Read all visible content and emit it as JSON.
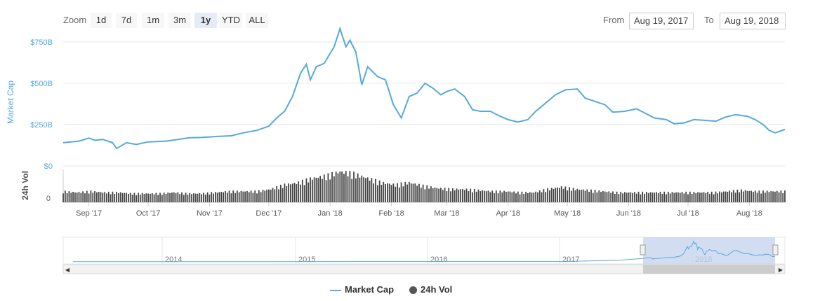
{
  "toolbar": {
    "zoom_label": "Zoom",
    "buttons": [
      "1d",
      "7d",
      "1m",
      "3m",
      "1y",
      "YTD",
      "ALL"
    ],
    "active_button": "1y",
    "from_label": "From",
    "from_value": "Aug 19, 2017",
    "to_label": "To",
    "to_value": "Aug 19, 2018"
  },
  "colors": {
    "market_cap": "#56a9dd",
    "volume": "#444444",
    "navigator_fill": "#c8d4ee"
  },
  "chart_data": {
    "type": "line",
    "x_ticks": [
      "Sep '17",
      "Oct '17",
      "Nov '17",
      "Dec '17",
      "Jan '18",
      "Feb '18",
      "Mar '18",
      "Apr '18",
      "May '18",
      "Jun '18",
      "Jul '18",
      "Aug '18"
    ],
    "y_axis": {
      "label": "Market Cap",
      "ticks": [
        "$0",
        "$250B",
        "$500B",
        "$750B"
      ],
      "ylim": [
        0,
        800
      ]
    },
    "volume_axis": {
      "label": "24h Vol",
      "ticks": [
        "0"
      ]
    },
    "series": [
      {
        "name": "Market Cap",
        "unit": "billion USD",
        "points": [
          [
            "2017-08-19",
            140
          ],
          [
            "2017-08-27",
            150
          ],
          [
            "2017-09-01",
            168
          ],
          [
            "2017-09-04",
            155
          ],
          [
            "2017-09-08",
            160
          ],
          [
            "2017-09-13",
            140
          ],
          [
            "2017-09-15",
            105
          ],
          [
            "2017-09-20",
            140
          ],
          [
            "2017-09-25",
            130
          ],
          [
            "2017-10-01",
            145
          ],
          [
            "2017-10-10",
            150
          ],
          [
            "2017-10-16",
            160
          ],
          [
            "2017-10-22",
            170
          ],
          [
            "2017-10-28",
            172
          ],
          [
            "2017-11-05",
            178
          ],
          [
            "2017-11-12",
            182
          ],
          [
            "2017-11-18",
            200
          ],
          [
            "2017-11-25",
            215
          ],
          [
            "2017-12-01",
            240
          ],
          [
            "2017-12-05",
            290
          ],
          [
            "2017-12-09",
            330
          ],
          [
            "2017-12-13",
            420
          ],
          [
            "2017-12-17",
            560
          ],
          [
            "2017-12-20",
            615
          ],
          [
            "2017-12-22",
            520
          ],
          [
            "2017-12-25",
            600
          ],
          [
            "2017-12-29",
            620
          ],
          [
            "2018-01-03",
            720
          ],
          [
            "2018-01-06",
            830
          ],
          [
            "2018-01-09",
            720
          ],
          [
            "2018-01-11",
            760
          ],
          [
            "2018-01-14",
            690
          ],
          [
            "2018-01-17",
            490
          ],
          [
            "2018-01-20",
            600
          ],
          [
            "2018-01-25",
            540
          ],
          [
            "2018-01-29",
            520
          ],
          [
            "2018-02-02",
            370
          ],
          [
            "2018-02-06",
            290
          ],
          [
            "2018-02-10",
            420
          ],
          [
            "2018-02-14",
            440
          ],
          [
            "2018-02-18",
            500
          ],
          [
            "2018-02-22",
            470
          ],
          [
            "2018-02-26",
            430
          ],
          [
            "2018-03-01",
            450
          ],
          [
            "2018-03-05",
            465
          ],
          [
            "2018-03-10",
            420
          ],
          [
            "2018-03-14",
            340
          ],
          [
            "2018-03-18",
            330
          ],
          [
            "2018-03-23",
            330
          ],
          [
            "2018-03-28",
            300
          ],
          [
            "2018-04-01",
            280
          ],
          [
            "2018-04-06",
            265
          ],
          [
            "2018-04-11",
            280
          ],
          [
            "2018-04-15",
            330
          ],
          [
            "2018-04-20",
            380
          ],
          [
            "2018-04-25",
            430
          ],
          [
            "2018-04-30",
            460
          ],
          [
            "2018-05-06",
            465
          ],
          [
            "2018-05-10",
            410
          ],
          [
            "2018-05-15",
            390
          ],
          [
            "2018-05-20",
            370
          ],
          [
            "2018-05-24",
            325
          ],
          [
            "2018-05-30",
            330
          ],
          [
            "2018-06-05",
            345
          ],
          [
            "2018-06-10",
            315
          ],
          [
            "2018-06-14",
            290
          ],
          [
            "2018-06-20",
            280
          ],
          [
            "2018-06-24",
            255
          ],
          [
            "2018-06-29",
            260
          ],
          [
            "2018-07-04",
            280
          ],
          [
            "2018-07-10",
            275
          ],
          [
            "2018-07-15",
            270
          ],
          [
            "2018-07-20",
            295
          ],
          [
            "2018-07-25",
            310
          ],
          [
            "2018-07-31",
            300
          ],
          [
            "2018-08-04",
            280
          ],
          [
            "2018-08-08",
            250
          ],
          [
            "2018-08-11",
            215
          ],
          [
            "2018-08-14",
            200
          ],
          [
            "2018-08-19",
            220
          ]
        ]
      },
      {
        "name": "24h Vol",
        "type": "bar",
        "unit": "relative",
        "points": [
          [
            "2017-08-19",
            10
          ],
          [
            "2017-08-26",
            9
          ],
          [
            "2017-09-02",
            10
          ],
          [
            "2017-09-09",
            9
          ],
          [
            "2017-09-16",
            9
          ],
          [
            "2017-09-23",
            8
          ],
          [
            "2017-09-30",
            8
          ],
          [
            "2017-10-07",
            8
          ],
          [
            "2017-10-14",
            9
          ],
          [
            "2017-10-21",
            8
          ],
          [
            "2017-10-28",
            8
          ],
          [
            "2017-11-04",
            9
          ],
          [
            "2017-11-11",
            10
          ],
          [
            "2017-11-18",
            10
          ],
          [
            "2017-11-25",
            10
          ],
          [
            "2017-12-02",
            12
          ],
          [
            "2017-12-09",
            16
          ],
          [
            "2017-12-16",
            18
          ],
          [
            "2017-12-23",
            22
          ],
          [
            "2017-12-30",
            24
          ],
          [
            "2018-01-06",
            28
          ],
          [
            "2018-01-13",
            26
          ],
          [
            "2018-01-20",
            22
          ],
          [
            "2018-01-27",
            18
          ],
          [
            "2018-02-03",
            16
          ],
          [
            "2018-02-10",
            18
          ],
          [
            "2018-02-17",
            15
          ],
          [
            "2018-02-24",
            13
          ],
          [
            "2018-03-03",
            12
          ],
          [
            "2018-03-10",
            12
          ],
          [
            "2018-03-17",
            11
          ],
          [
            "2018-03-24",
            10
          ],
          [
            "2018-03-31",
            10
          ],
          [
            "2018-04-07",
            9
          ],
          [
            "2018-04-14",
            9
          ],
          [
            "2018-04-21",
            12
          ],
          [
            "2018-04-28",
            14
          ],
          [
            "2018-05-05",
            12
          ],
          [
            "2018-05-12",
            11
          ],
          [
            "2018-05-19",
            10
          ],
          [
            "2018-05-26",
            9
          ],
          [
            "2018-06-02",
            9
          ],
          [
            "2018-06-09",
            9
          ],
          [
            "2018-06-16",
            9
          ],
          [
            "2018-06-23",
            9
          ],
          [
            "2018-06-30",
            9
          ],
          [
            "2018-07-07",
            9
          ],
          [
            "2018-07-14",
            9
          ],
          [
            "2018-07-21",
            10
          ],
          [
            "2018-07-28",
            11
          ],
          [
            "2018-08-04",
            10
          ],
          [
            "2018-08-11",
            10
          ],
          [
            "2018-08-19",
            10
          ]
        ]
      }
    ],
    "navigator": {
      "year_labels": [
        "2014",
        "2015",
        "2016",
        "2017",
        "2018"
      ],
      "selected_range": [
        "2017-08-19",
        "2018-08-19"
      ]
    },
    "legend": {
      "placement": "bottom-center",
      "items": [
        "Market Cap",
        "24h Vol"
      ]
    },
    "grid": true
  }
}
